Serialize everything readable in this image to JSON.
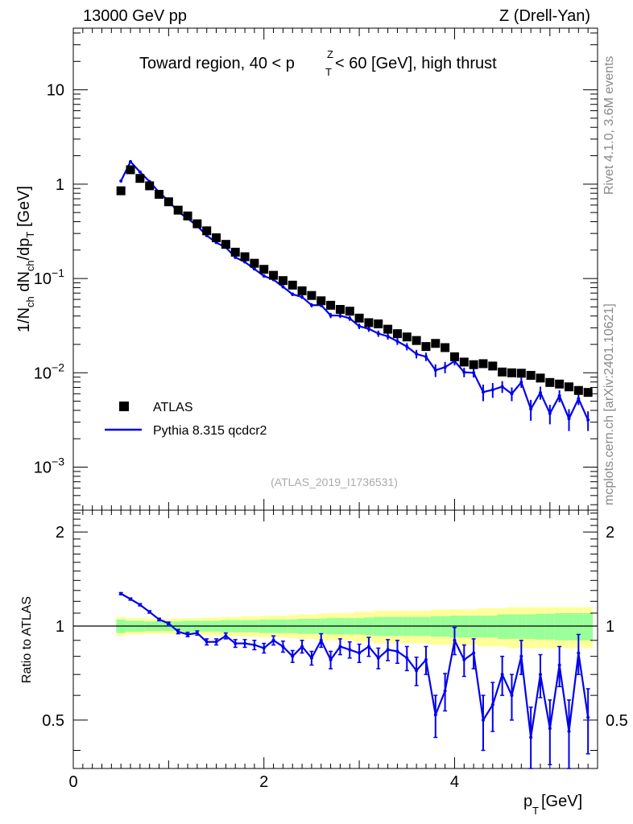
{
  "header": {
    "beam": "13000 GeV pp",
    "process": "Z (Drell-Yan)",
    "region": "Toward region, 40 < p",
    "region_sub": "T",
    "region_sup": "Z",
    "region_tail": " < 60 [GeV], high thrust",
    "analysis_id": "(ATLAS_2019_I1736531)"
  },
  "side_labels": {
    "rivet": "Rivet 4.1.0,  3.6M events",
    "mcplots": "mcplots.cern.ch [arXiv:2401.10621]"
  },
  "axes": {
    "ylabel_main": "1/N",
    "ylabel_main_sub1": "ch",
    "ylabel_main_mid": " dN",
    "ylabel_main_sub2": "ch",
    "ylabel_main_tail": "/dp",
    "ylabel_main_sub3": "T",
    "ylabel_main_unit": " [GeV]",
    "ylabel_ratio": "Ratio to ATLAS",
    "xlabel": "p",
    "xlabel_sub": "T",
    "xlabel_unit": " [GeV]",
    "y_main_ticks": [
      {
        "v": 10,
        "base": "10",
        "exp": ""
      },
      {
        "v": 1,
        "base": "1",
        "exp": ""
      },
      {
        "v": 0.1,
        "base": "10",
        "exp": "−1"
      },
      {
        "v": 0.01,
        "base": "10",
        "exp": "−2"
      },
      {
        "v": 0.001,
        "base": "10",
        "exp": "−3"
      }
    ],
    "y_ratio_ticks": [
      "0.5",
      "1",
      "2"
    ],
    "x_ticks": [
      "0",
      "2",
      "4"
    ]
  },
  "legend": {
    "data_label": "ATLAS",
    "mc_label": "Pythia 8.315 qcdcr2",
    "position": "left-middle"
  },
  "colors": {
    "data": "#000000",
    "mc": "#0000ee",
    "band_inner": "#99ff99",
    "band_outer": "#ffff99"
  },
  "chart_data": {
    "type": "scatter",
    "x_range": [
      0,
      5.5
    ],
    "y_main_range": [
      0.00035,
      45
    ],
    "y_ratio_range": [
      0.35,
      2.35
    ],
    "x": [
      0.5,
      0.6,
      0.7,
      0.8,
      0.9,
      1.0,
      1.1,
      1.2,
      1.3,
      1.4,
      1.5,
      1.6,
      1.7,
      1.8,
      1.9,
      2.0,
      2.1,
      2.2,
      2.3,
      2.4,
      2.5,
      2.6,
      2.7,
      2.8,
      2.9,
      3.0,
      3.1,
      3.2,
      3.3,
      3.4,
      3.5,
      3.6,
      3.7,
      3.8,
      3.9,
      4.0,
      4.1,
      4.2,
      4.3,
      4.4,
      4.5,
      4.6,
      4.7,
      4.8,
      4.9,
      5.0,
      5.1,
      5.2,
      5.3,
      5.4
    ],
    "series": [
      {
        "name": "ATLAS",
        "values": [
          0.85,
          1.42,
          1.15,
          0.96,
          0.78,
          0.65,
          0.53,
          0.46,
          0.38,
          0.32,
          0.27,
          0.23,
          0.19,
          0.17,
          0.145,
          0.125,
          0.108,
          0.095,
          0.085,
          0.074,
          0.066,
          0.058,
          0.052,
          0.047,
          0.045,
          0.038,
          0.034,
          0.033,
          0.029,
          0.026,
          0.024,
          0.022,
          0.019,
          0.0205,
          0.0185,
          0.0148,
          0.013,
          0.0122,
          0.0125,
          0.0118,
          0.0102,
          0.01,
          0.0099,
          0.0094,
          0.0088,
          0.0079,
          0.0076,
          0.0071,
          0.0065,
          0.0062
        ],
        "band_inner": [
          0.05,
          0.04,
          0.04,
          0.035,
          0.035,
          0.035,
          0.035,
          0.04,
          0.04,
          0.04,
          0.04,
          0.045,
          0.045,
          0.045,
          0.045,
          0.05,
          0.05,
          0.05,
          0.05,
          0.055,
          0.055,
          0.055,
          0.06,
          0.06,
          0.06,
          0.06,
          0.065,
          0.07,
          0.07,
          0.07,
          0.07,
          0.07,
          0.07,
          0.075,
          0.075,
          0.08,
          0.08,
          0.08,
          0.08,
          0.08,
          0.09,
          0.09,
          0.09,
          0.09,
          0.095,
          0.095,
          0.1,
          0.1,
          0.1,
          0.1
        ],
        "band_outer": [
          0.07,
          0.06,
          0.06,
          0.055,
          0.055,
          0.055,
          0.06,
          0.06,
          0.06,
          0.065,
          0.065,
          0.07,
          0.07,
          0.075,
          0.075,
          0.08,
          0.08,
          0.08,
          0.085,
          0.09,
          0.09,
          0.095,
          0.1,
          0.1,
          0.1,
          0.11,
          0.11,
          0.12,
          0.12,
          0.12,
          0.12,
          0.12,
          0.12,
          0.13,
          0.13,
          0.13,
          0.13,
          0.13,
          0.14,
          0.14,
          0.14,
          0.15,
          0.15,
          0.15,
          0.15,
          0.15,
          0.15,
          0.15,
          0.15,
          0.15
        ]
      },
      {
        "name": "Pythia 8.315 qcdcr2",
        "ratio": [
          1.27,
          1.22,
          1.17,
          1.11,
          1.05,
          1.02,
          0.96,
          0.94,
          0.95,
          0.89,
          0.89,
          0.93,
          0.88,
          0.88,
          0.87,
          0.85,
          0.9,
          0.86,
          0.8,
          0.86,
          0.79,
          0.9,
          0.78,
          0.86,
          0.84,
          0.82,
          0.86,
          0.79,
          0.84,
          0.83,
          0.79,
          0.72,
          0.78,
          0.52,
          0.62,
          0.9,
          0.78,
          0.82,
          0.5,
          0.56,
          0.7,
          0.6,
          0.8,
          0.44,
          0.7,
          0.47,
          0.75,
          0.46,
          0.82,
          0.51
        ],
        "ratio_err": [
          0.01,
          0.01,
          0.01,
          0.01,
          0.01,
          0.01,
          0.015,
          0.015,
          0.015,
          0.02,
          0.02,
          0.02,
          0.025,
          0.025,
          0.03,
          0.03,
          0.03,
          0.035,
          0.035,
          0.04,
          0.04,
          0.045,
          0.05,
          0.05,
          0.05,
          0.055,
          0.06,
          0.06,
          0.065,
          0.07,
          0.07,
          0.075,
          0.08,
          0.08,
          0.085,
          0.09,
          0.09,
          0.09,
          0.1,
          0.1,
          0.1,
          0.1,
          0.1,
          0.11,
          0.11,
          0.11,
          0.11,
          0.12,
          0.12,
          0.12
        ]
      }
    ]
  }
}
